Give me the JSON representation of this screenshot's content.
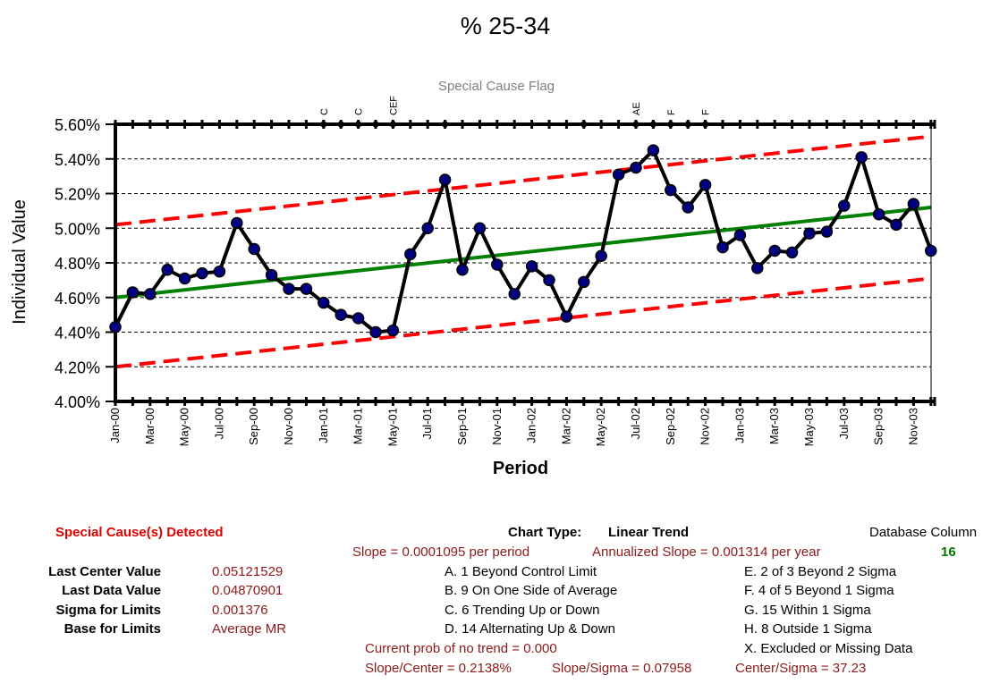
{
  "chart_data": {
    "type": "line",
    "title": "% 25-34",
    "subtitle": "Special Cause Flag",
    "xlabel": "Period",
    "ylabel": "Individual Value",
    "ylim": [
      0.04,
      0.056
    ],
    "yticks": [
      "5.60%",
      "5.40%",
      "5.20%",
      "5.00%",
      "4.80%",
      "4.60%",
      "4.40%",
      "4.20%",
      "4.00%"
    ],
    "categories": [
      "Jan-00",
      "Feb-00",
      "Mar-00",
      "Apr-00",
      "May-00",
      "Jun-00",
      "Jul-00",
      "Aug-00",
      "Sep-00",
      "Oct-00",
      "Nov-00",
      "Dec-00",
      "Jan-01",
      "Feb-01",
      "Mar-01",
      "Apr-01",
      "May-01",
      "Jun-01",
      "Jul-01",
      "Aug-01",
      "Sep-01",
      "Oct-01",
      "Nov-01",
      "Dec-01",
      "Jan-02",
      "Feb-02",
      "Mar-02",
      "Apr-02",
      "May-02",
      "Jun-02",
      "Jul-02",
      "Aug-02",
      "Sep-02",
      "Oct-02",
      "Nov-02",
      "Dec-02",
      "Jan-03",
      "Feb-03",
      "Mar-03",
      "Apr-03",
      "May-03",
      "Jun-03",
      "Jul-03",
      "Aug-03",
      "Sep-03",
      "Oct-03",
      "Nov-03",
      "Dec-03"
    ],
    "xtick_labels": [
      "Jan-00",
      "Mar-00",
      "May-00",
      "Jul-00",
      "Sep-00",
      "Nov-00",
      "Jan-01",
      "Mar-01",
      "May-01",
      "Jul-01",
      "Sep-01",
      "Nov-01",
      "Jan-02",
      "Mar-02",
      "May-02",
      "Jul-02",
      "Sep-02",
      "Nov-02",
      "Jan-03",
      "Mar-03",
      "May-03",
      "Jul-03",
      "Sep-03",
      "Nov-03"
    ],
    "series": [
      {
        "values": [
          0.0443,
          0.0463,
          0.0462,
          0.0476,
          0.0471,
          0.0474,
          0.0475,
          0.0503,
          0.0488,
          0.0473,
          0.0465,
          0.0465,
          0.0457,
          0.045,
          0.0448,
          0.044,
          0.0441,
          0.0485,
          0.05,
          0.0528,
          0.0476,
          0.05,
          0.0479,
          0.0462,
          0.0478,
          0.047,
          0.0449,
          0.0469,
          0.0484,
          0.0531,
          0.0535,
          0.0545,
          0.0522,
          0.0512,
          0.0525,
          0.0489,
          0.0496,
          0.0477,
          0.0487,
          0.0486,
          0.0497,
          0.0498,
          0.0513,
          0.0541,
          0.0508,
          0.0502,
          0.0514,
          0.0487
        ]
      },
      {
        "type": "center",
        "start": 0.046,
        "end": 0.0512
      },
      {
        "type": "ucl",
        "start": 0.0502,
        "end": 0.0553
      },
      {
        "type": "lcl",
        "start": 0.042,
        "end": 0.0471
      }
    ],
    "flags": [
      {
        "index": 12,
        "label": "C"
      },
      {
        "index": 13,
        "label": ""
      },
      {
        "index": 14,
        "label": "C"
      },
      {
        "index": 15,
        "label": ""
      },
      {
        "index": 16,
        "label": "CEF"
      },
      {
        "index": 19,
        "label": ""
      },
      {
        "index": 27,
        "label": ""
      },
      {
        "index": 30,
        "label": "AE"
      },
      {
        "index": 31,
        "label": ""
      },
      {
        "index": 32,
        "label": "F"
      },
      {
        "index": 33,
        "label": ""
      },
      {
        "index": 34,
        "label": "F"
      }
    ],
    "grid": true,
    "colors": {
      "data": "#000000",
      "marker": "#000080",
      "center": "#008000",
      "limits": "#ff0000"
    }
  },
  "summary": {
    "special_cause": "Special Cause(s) Detected",
    "last_center_label": "Last Center Value",
    "last_center_value": "0.05121529",
    "last_data_label": "Last Data Value",
    "last_data_value": "0.04870901",
    "sigma_label": "Sigma for Limits",
    "sigma_value": "0.001376",
    "base_label": "Base for Limits",
    "base_value": "Average MR",
    "chart_type_label": "Chart Type:",
    "chart_type_value": "Linear Trend",
    "db_column_label": "Database Column",
    "db_column_value": "16",
    "slope": "Slope = 0.0001095 per period",
    "annualized_slope": "Annualized Slope = 0.001314 per year",
    "rules_left": [
      "A.  1 Beyond Control Limit",
      "B.  9 On One Side of Average",
      "C.  6 Trending Up or Down",
      "D.  14 Alternating  Up & Down"
    ],
    "rules_right": [
      "E.  2 of 3 Beyond 2 Sigma",
      "F.  4 of 5 Beyond 1 Sigma",
      "G.  15 Within 1 Sigma",
      "H.  8 Outside 1 Sigma",
      "X.  Excluded or Missing Data"
    ],
    "prob_no_trend": "Current prob of no trend = 0.000",
    "slope_center": "Slope/Center = 0.2138%",
    "slope_sigma": "Slope/Sigma = 0.07958",
    "center_sigma": "Center/Sigma = 37.23"
  }
}
